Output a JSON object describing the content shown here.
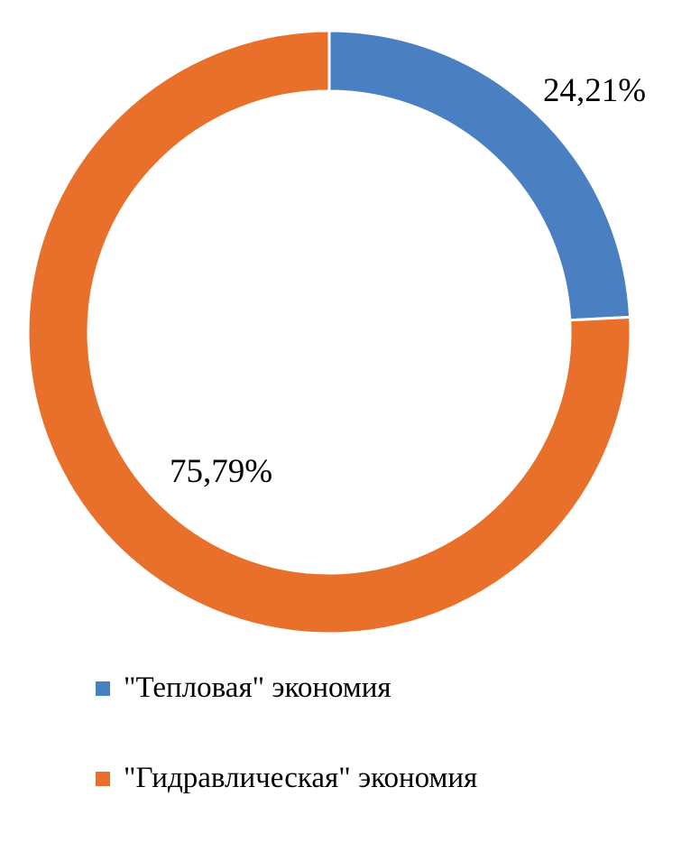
{
  "chart_data": {
    "type": "pie",
    "subtype": "donut",
    "title": "",
    "hole_ratio": 0.8,
    "start_angle_deg": 0,
    "direction": "clockwise",
    "categories": [
      "\"Тепловая\" экономия",
      "\"Гидравлическая\" экономия"
    ],
    "values": [
      24.21,
      75.79
    ],
    "data_labels": [
      "24,21%",
      "75,79%"
    ],
    "colors": [
      "#4A80C2",
      "#E8702A"
    ],
    "slice_border_color": "#FFFFFF",
    "legend_position": "bottom-left",
    "background_color": "#FFFFFF"
  }
}
